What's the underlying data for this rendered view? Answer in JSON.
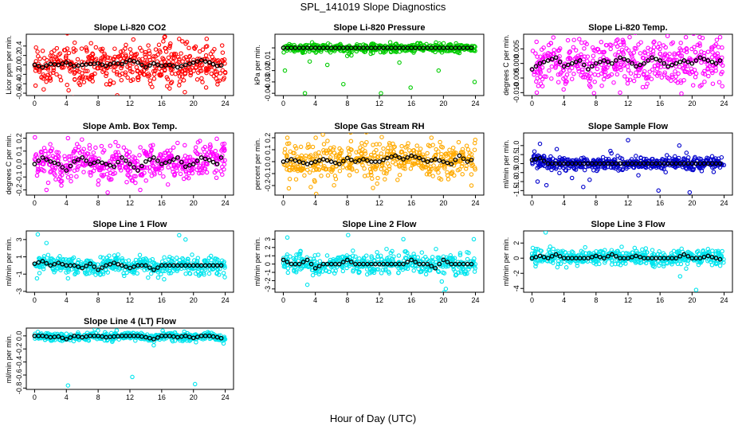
{
  "title": "SPL_141019  Slope Diagnostics",
  "xlabel": "Hour of Day (UTC)",
  "chart_data": [
    {
      "type": "scatter",
      "title": "Slope Li-820 CO2",
      "ylabel": "Licor ppm per min.",
      "color": "#ff0000",
      "xlim": [
        0,
        24
      ],
      "ylim": [
        -0.65,
        0.65
      ],
      "yticks": [
        -0.6,
        -0.4,
        -0.2,
        0.0,
        0.2,
        0.4
      ],
      "ytick_labels": [
        "-0.6",
        "-0.4",
        "-0.2",
        "0.0",
        "0.2",
        "0.4"
      ],
      "xticks": [
        0,
        4,
        8,
        12,
        16,
        20,
        24
      ],
      "spread": 0.2,
      "hourly_means": [
        0.0,
        -0.05,
        0.02,
        0.0,
        0.05,
        -0.03,
        0.0,
        0.02,
        0.03,
        -0.02,
        0.04,
        0.02,
        0.1,
        0.05,
        -0.05,
        0.03,
        -0.02,
        0.0,
        -0.05,
        0.0,
        0.05,
        0.1,
        0.05,
        -0.02,
        0.0
      ],
      "outliers": [
        [
          16.4,
          0.6
        ],
        [
          16.2,
          0.5
        ],
        [
          17.1,
          0.45
        ],
        [
          18.2,
          0.55
        ],
        [
          18.6,
          0.5
        ],
        [
          17.0,
          -0.5
        ],
        [
          16.7,
          -0.45
        ],
        [
          18.3,
          -0.35
        ],
        [
          16.5,
          0.35
        ]
      ]
    },
    {
      "type": "scatter",
      "title": "Slope Li-820 Pressure",
      "ylabel": "kPa per min.",
      "color": "#00cc00",
      "xlim": [
        0,
        24
      ],
      "ylim": [
        -0.042,
        0.012
      ],
      "yticks": [
        -0.04,
        -0.03,
        -0.02,
        -0.01,
        0.0
      ],
      "ytick_labels": [
        "-0.04",
        "-0.03",
        "-0.02",
        "-0.01",
        ""
      ],
      "xticks": [
        0,
        4,
        8,
        12,
        16,
        20,
        24
      ],
      "spread": 0.002,
      "hourly_means": [
        0.0,
        0.0,
        0.0,
        0.0,
        0.0,
        0.0,
        0.0,
        0.0,
        0.0,
        0.0,
        0.0,
        0.0,
        0.0,
        0.0,
        0.0,
        0.0,
        0.0,
        0.0,
        0.0,
        0.0,
        0.0,
        0.0,
        0.0,
        0.0,
        0.0
      ],
      "outliers": [
        [
          2.7,
          -0.04
        ],
        [
          7.5,
          -0.032
        ],
        [
          12.2,
          -0.04
        ],
        [
          15.9,
          -0.035
        ],
        [
          19.4,
          -0.02
        ],
        [
          23.9,
          -0.03
        ],
        [
          0.2,
          -0.02
        ],
        [
          3.3,
          -0.012
        ],
        [
          14.5,
          -0.013
        ],
        [
          5.5,
          -0.015
        ]
      ]
    },
    {
      "type": "scatter",
      "title": "Slope Li-820 Temp.",
      "ylabel": "degrees C per min.",
      "color": "#ff00ff",
      "xlim": [
        0,
        24
      ],
      "ylim": [
        -0.011,
        0.01
      ],
      "yticks": [
        -0.01,
        -0.005,
        0.0,
        0.005
      ],
      "ytick_labels": [
        "-0.010",
        "-0.005",
        "0.000",
        "0.005"
      ],
      "xticks": [
        0,
        4,
        8,
        12,
        16,
        20,
        24
      ],
      "spread": 0.004,
      "hourly_means": [
        -0.002,
        0.0,
        0.001,
        0.002,
        -0.001,
        0.0,
        0.001,
        -0.002,
        0.0,
        0.001,
        0.0,
        0.002,
        0.001,
        -0.001,
        0.0,
        0.002,
        0.001,
        -0.001,
        0.0,
        0.001,
        0.0,
        0.002,
        0.001,
        0.0,
        0.002
      ],
      "outliers": [
        [
          12.2,
          0.009
        ],
        [
          23.5,
          0.009
        ],
        [
          11.0,
          -0.01
        ],
        [
          0.6,
          -0.01
        ],
        [
          7.3,
          -0.008
        ]
      ]
    },
    {
      "type": "scatter",
      "title": "Slope Amb. Box Temp.",
      "ylabel": "degrees C per min.",
      "color": "#ff00ff",
      "xlim": [
        0,
        24
      ],
      "ylim": [
        -0.24,
        0.24
      ],
      "yticks": [
        -0.2,
        -0.1,
        0.0,
        0.1,
        0.2
      ],
      "ytick_labels": [
        "-0.2",
        "-0.1",
        "0.0",
        "0.1",
        "0.2"
      ],
      "xticks": [
        0,
        4,
        8,
        12,
        16,
        20,
        24
      ],
      "spread": 0.07,
      "hourly_means": [
        0.0,
        0.05,
        0.02,
        0.0,
        -0.05,
        0.02,
        0.05,
        0.0,
        0.02,
        0.0,
        -0.02,
        0.05,
        0.0,
        -0.05,
        0.02,
        0.05,
        0.0,
        0.02,
        0.05,
        -0.02,
        0.0,
        0.05,
        0.03,
        0.0,
        0.1
      ],
      "outliers": [
        [
          1.5,
          -0.2
        ],
        [
          9.2,
          -0.22
        ],
        [
          13.3,
          -0.2
        ],
        [
          4.2,
          0.2
        ],
        [
          22.1,
          0.15
        ]
      ]
    },
    {
      "type": "scatter",
      "title": "Slope Gas Stream RH",
      "ylabel": "percent per min.",
      "color": "#ffaa00",
      "xlim": [
        0,
        24
      ],
      "ylim": [
        -0.28,
        0.24
      ],
      "yticks": [
        -0.2,
        -0.1,
        0.0,
        0.1,
        0.2
      ],
      "ytick_labels": [
        "-0.2",
        "-0.1",
        "0.0",
        "0.1",
        "0.2"
      ],
      "xticks": [
        0,
        4,
        8,
        12,
        16,
        20,
        24
      ],
      "spread": 0.07,
      "hourly_means": [
        0.0,
        0.02,
        0.0,
        -0.02,
        0.0,
        0.02,
        0.0,
        -0.02,
        0.03,
        0.0,
        0.02,
        0.0,
        0.0,
        0.03,
        0.05,
        0.02,
        0.05,
        0.03,
        0.0,
        0.02,
        0.0,
        -0.02,
        0.05,
        0.0,
        0.03
      ],
      "outliers": [
        [
          0.5,
          0.2
        ],
        [
          4.1,
          -0.27
        ],
        [
          18.5,
          0.2
        ],
        [
          23.5,
          -0.2
        ],
        [
          11.2,
          -0.22
        ]
      ]
    },
    {
      "type": "scatter",
      "title": "Slope Sample Flow",
      "ylabel": "ml/min per min.",
      "color": "#0000cc",
      "xlim": [
        0,
        24
      ],
      "ylim": [
        -1.75,
        1.7
      ],
      "yticks": [
        -1.5,
        -1.0,
        -0.5,
        0.0,
        0.5,
        1.0
      ],
      "ytick_labels": [
        "-1.5",
        "-1.0",
        "-0.5",
        "0.0",
        "0.5",
        "1.0"
      ],
      "xticks": [
        0,
        4,
        8,
        12,
        16,
        20,
        24
      ],
      "spread": 0.18,
      "hourly_means": [
        0.2,
        0.3,
        0.0,
        0.0,
        0.0,
        0.0,
        0.0,
        0.0,
        0.0,
        0.0,
        0.0,
        0.0,
        0.0,
        0.0,
        0.0,
        0.0,
        0.0,
        0.0,
        0.0,
        0.0,
        0.0,
        0.0,
        0.0,
        0.0,
        0.0
      ],
      "outliers": [
        [
          1.0,
          1.1
        ],
        [
          0.7,
          -1.0
        ],
        [
          1.8,
          -1.2
        ],
        [
          3.1,
          0.8
        ],
        [
          5.0,
          -0.8
        ],
        [
          6.4,
          -1.3
        ],
        [
          9.8,
          0.7
        ],
        [
          12.0,
          1.3
        ],
        [
          15.8,
          -1.5
        ],
        [
          19.7,
          -1.6
        ],
        [
          19.3,
          0.6
        ],
        [
          18.4,
          1.0
        ],
        [
          7.2,
          -0.9
        ]
      ]
    },
    {
      "type": "scatter",
      "title": "Slope Line 1 Flow",
      "ylabel": "ml/min per min.",
      "color": "#00e5ee",
      "xlim": [
        0,
        24
      ],
      "ylim": [
        -3.1,
        4.0
      ],
      "yticks": [
        -3,
        -1,
        1,
        3
      ],
      "ytick_labels": [
        "-3",
        "-1",
        "1",
        "3"
      ],
      "xticks": [
        0,
        4,
        8,
        12,
        16,
        20,
        24
      ],
      "spread": 0.5,
      "hourly_means": [
        0.2,
        0.5,
        0.0,
        0.3,
        0.0,
        0.0,
        -0.3,
        0.2,
        -0.5,
        0.0,
        0.3,
        0.0,
        -0.3,
        0.0,
        0.0,
        -0.5,
        0.0,
        0.0,
        0.0,
        0.0,
        0.0,
        0.0,
        0.0,
        0.0,
        0.0
      ],
      "outliers": [
        [
          0.4,
          3.6
        ],
        [
          1.5,
          2.6
        ],
        [
          18.2,
          3.5
        ],
        [
          19.0,
          3.0
        ],
        [
          0.3,
          -1.5
        ],
        [
          16.3,
          -1.6
        ],
        [
          4.2,
          -1.5
        ]
      ]
    },
    {
      "type": "scatter",
      "title": "Slope Line 2 Flow",
      "ylabel": "ml/min per min.",
      "color": "#00e5ee",
      "xlim": [
        0,
        24
      ],
      "ylim": [
        -3.4,
        4.0
      ],
      "yticks": [
        -3,
        -2,
        -1,
        0,
        1,
        2,
        3
      ],
      "ytick_labels": [
        "-3",
        "-2",
        "-1",
        "0",
        "1",
        "2",
        "3"
      ],
      "xticks": [
        0,
        4,
        8,
        12,
        16,
        20,
        24
      ],
      "spread": 0.6,
      "hourly_means": [
        0.5,
        0.0,
        0.0,
        0.5,
        -0.5,
        0.0,
        0.0,
        0.0,
        0.5,
        0.0,
        0.0,
        0.0,
        0.0,
        0.0,
        0.0,
        0.0,
        0.5,
        0.0,
        0.0,
        -0.5,
        0.5,
        0.0,
        0.0,
        0.0,
        0.0
      ],
      "outliers": [
        [
          0.5,
          3.2
        ],
        [
          8.1,
          3.5
        ],
        [
          15.0,
          3.0
        ],
        [
          23.8,
          3.0
        ],
        [
          3.0,
          -2.5
        ],
        [
          20.3,
          -3.0
        ],
        [
          20.1,
          -3.4
        ],
        [
          19.8,
          -2.1
        ]
      ]
    },
    {
      "type": "scatter",
      "title": "Slope Line 3 Flow",
      "ylabel": "ml/min per min.",
      "color": "#00e5ee",
      "xlim": [
        0,
        24
      ],
      "ylim": [
        -4.5,
        3.6
      ],
      "yticks": [
        -4,
        -2,
        0,
        2
      ],
      "ytick_labels": [
        "-4",
        "-2",
        "0",
        "2"
      ],
      "xticks": [
        0,
        4,
        8,
        12,
        16,
        20,
        24
      ],
      "spread": 0.5,
      "hourly_means": [
        0.0,
        0.3,
        0.0,
        0.5,
        0.0,
        0.0,
        0.0,
        0.0,
        0.3,
        0.0,
        0.5,
        0.0,
        0.0,
        0.3,
        0.0,
        0.0,
        0.0,
        0.0,
        0.0,
        0.5,
        0.0,
        0.0,
        0.3,
        0.0,
        -0.3
      ],
      "outliers": [
        [
          1.7,
          3.4
        ],
        [
          20.5,
          -4.2
        ],
        [
          18.5,
          -2.4
        ],
        [
          0.5,
          1.2
        ],
        [
          11.2,
          1.5
        ]
      ]
    },
    {
      "type": "scatter",
      "title": "Slope Line 4 (LT) Flow",
      "ylabel": "ml/min per min.",
      "color": "#00e5ee",
      "xlim": [
        0,
        24
      ],
      "ylim": [
        -0.82,
        0.12
      ],
      "yticks": [
        -0.8,
        -0.6,
        -0.4,
        -0.2,
        0.0
      ],
      "ytick_labels": [
        "-0.8",
        "-0.6",
        "-0.4",
        "-0.2",
        "0.0"
      ],
      "xticks": [
        0,
        4,
        8,
        12,
        16,
        20,
        24
      ],
      "spread": 0.03,
      "hourly_means": [
        0.0,
        0.0,
        -0.02,
        -0.01,
        -0.05,
        0.0,
        -0.02,
        0.0,
        0.0,
        -0.02,
        -0.01,
        0.0,
        0.0,
        0.0,
        -0.02,
        -0.05,
        0.0,
        0.0,
        -0.02,
        0.0,
        -0.03,
        0.0,
        0.0,
        -0.02,
        -0.05
      ],
      "outliers": [
        [
          4.2,
          -0.76
        ],
        [
          12.3,
          -0.63
        ],
        [
          20.2,
          -0.74
        ],
        [
          7.6,
          0.1
        ]
      ]
    }
  ]
}
